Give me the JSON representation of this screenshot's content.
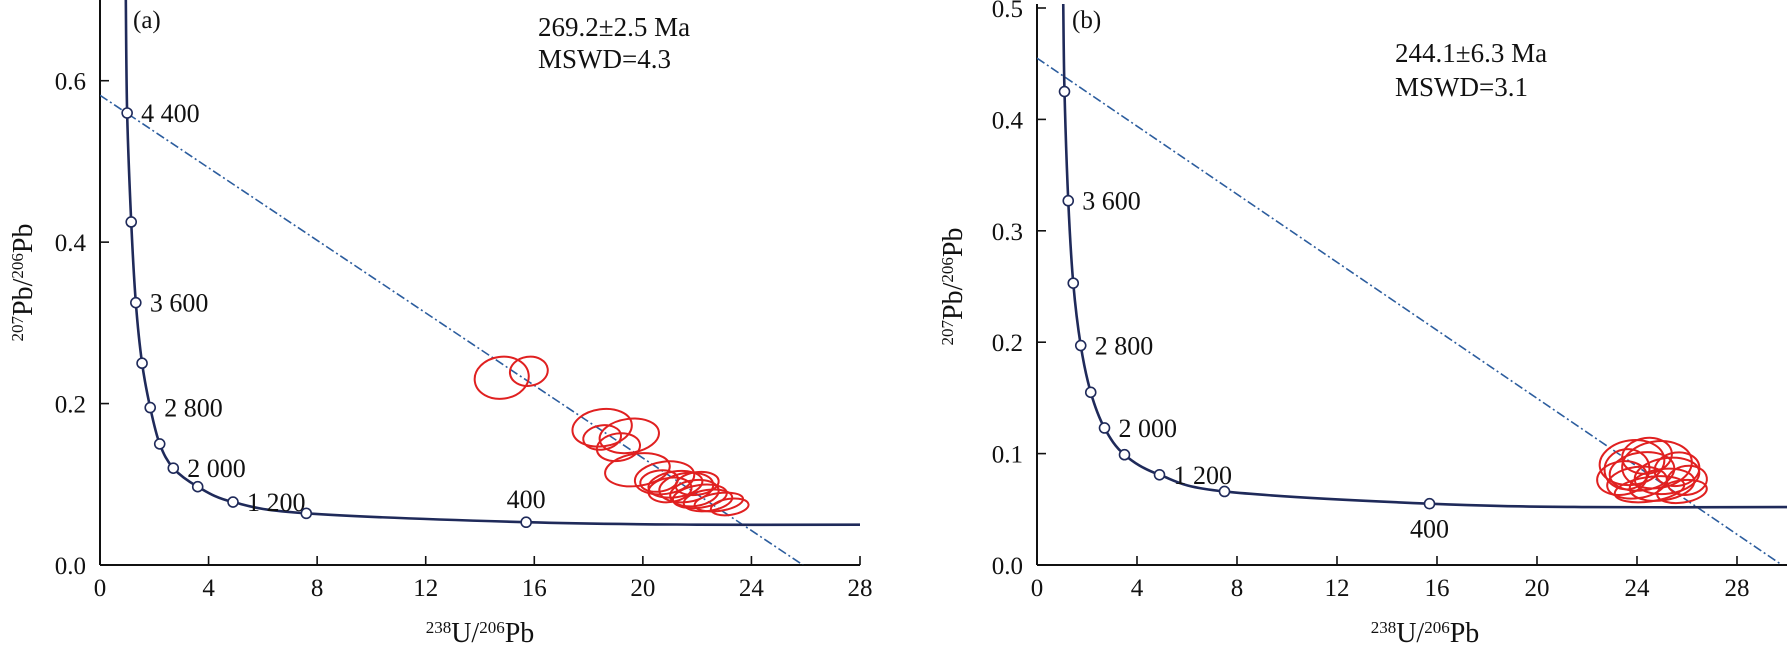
{
  "colors": {
    "concordia": "#1f2a5a",
    "discordia": "#2c5d9e",
    "ellipse": "#e02020",
    "axis": "#111111"
  },
  "chart_data": [
    {
      "type": "scatter",
      "panel_label": "(a)",
      "annotation": {
        "age": "269.2±2.5 Ma",
        "mswd": "MSWD=4.3"
      },
      "xlabel": {
        "sup1": "238",
        "t1": "U/",
        "sup2": "206",
        "t2": "Pb"
      },
      "ylabel": {
        "sup1": "207",
        "t1": "Pb/",
        "sup2": "206",
        "t2": "Pb"
      },
      "xlim": [
        0,
        28
      ],
      "ylim": [
        0,
        0.7
      ],
      "xticks": [
        0,
        4,
        8,
        12,
        16,
        20,
        24,
        28
      ],
      "xtick_labels": [
        "0",
        "4",
        "8",
        "12",
        "16",
        "20",
        "24",
        "28"
      ],
      "yticks": [
        0,
        0.2,
        0.4,
        0.6
      ],
      "ytick_labels": [
        "0.0",
        "0.2",
        "0.4",
        "0.6"
      ],
      "concordia_nodes": [
        {
          "x": 1.0,
          "y": 0.56,
          "label": "4 400"
        },
        {
          "x": 1.15,
          "y": 0.425,
          "label": ""
        },
        {
          "x": 1.32,
          "y": 0.325,
          "label": "3 600"
        },
        {
          "x": 1.55,
          "y": 0.25,
          "label": ""
        },
        {
          "x": 1.85,
          "y": 0.195,
          "label": "2 800"
        },
        {
          "x": 2.2,
          "y": 0.15,
          "label": ""
        },
        {
          "x": 2.7,
          "y": 0.12,
          "label": "2 000"
        },
        {
          "x": 3.6,
          "y": 0.097,
          "label": ""
        },
        {
          "x": 4.9,
          "y": 0.078,
          "label": "1 200"
        },
        {
          "x": 7.6,
          "y": 0.064,
          "label": ""
        },
        {
          "x": 15.7,
          "y": 0.053,
          "label": "400"
        }
      ],
      "discordia": {
        "intercept_y": 0.582,
        "lower_x": 25.9
      },
      "ellipses": [
        {
          "cx": 14.8,
          "cy": 0.232,
          "rx": 1.0,
          "ry": 0.026
        },
        {
          "cx": 15.8,
          "cy": 0.24,
          "rx": 0.7,
          "ry": 0.018
        },
        {
          "cx": 18.5,
          "cy": 0.17,
          "rx": 1.1,
          "ry": 0.023
        },
        {
          "cx": 19.5,
          "cy": 0.16,
          "rx": 1.1,
          "ry": 0.021
        },
        {
          "cx": 18.5,
          "cy": 0.158,
          "rx": 0.7,
          "ry": 0.015
        },
        {
          "cx": 19.1,
          "cy": 0.146,
          "rx": 0.8,
          "ry": 0.017
        },
        {
          "cx": 19.8,
          "cy": 0.118,
          "rx": 1.2,
          "ry": 0.02
        },
        {
          "cx": 20.8,
          "cy": 0.108,
          "rx": 1.1,
          "ry": 0.02
        },
        {
          "cx": 21.2,
          "cy": 0.1,
          "rx": 1.0,
          "ry": 0.016
        },
        {
          "cx": 21.6,
          "cy": 0.096,
          "rx": 1.0,
          "ry": 0.018
        },
        {
          "cx": 21.9,
          "cy": 0.089,
          "rx": 0.9,
          "ry": 0.016
        },
        {
          "cx": 22.1,
          "cy": 0.085,
          "rx": 1.0,
          "ry": 0.014
        },
        {
          "cx": 22.4,
          "cy": 0.08,
          "rx": 0.9,
          "ry": 0.013
        },
        {
          "cx": 22.8,
          "cy": 0.078,
          "rx": 0.9,
          "ry": 0.011
        },
        {
          "cx": 23.2,
          "cy": 0.072,
          "rx": 0.7,
          "ry": 0.01
        },
        {
          "cx": 21.0,
          "cy": 0.093,
          "rx": 0.8,
          "ry": 0.015
        },
        {
          "cx": 22.0,
          "cy": 0.101,
          "rx": 0.8,
          "ry": 0.014
        },
        {
          "cx": 20.6,
          "cy": 0.104,
          "rx": 0.7,
          "ry": 0.013
        }
      ]
    },
    {
      "type": "scatter",
      "panel_label": "(b)",
      "annotation": {
        "age": "244.1±6.3 Ma",
        "mswd": "MSWD=3.1"
      },
      "xlabel": {
        "sup1": "238",
        "t1": "U/",
        "sup2": "206",
        "t2": "Pb"
      },
      "ylabel": {
        "sup1": "207",
        "t1": "Pb/",
        "sup2": "206",
        "t2": "Pb"
      },
      "xlim": [
        0,
        30
      ],
      "ylim": [
        0,
        0.5
      ],
      "xticks": [
        0,
        4,
        8,
        12,
        16,
        20,
        24,
        28
      ],
      "xtick_labels": [
        "0",
        "4",
        "8",
        "12",
        "16",
        "20",
        "24",
        "28"
      ],
      "yticks": [
        0,
        0.1,
        0.2,
        0.3,
        0.4,
        0.5
      ],
      "ytick_labels": [
        "0.0",
        "0.1",
        "0.2",
        "0.3",
        "0.4",
        "0.5"
      ],
      "concordia_nodes": [
        {
          "x": 1.1,
          "y": 0.425,
          "label": ""
        },
        {
          "x": 1.25,
          "y": 0.327,
          "label": "3 600"
        },
        {
          "x": 1.45,
          "y": 0.253,
          "label": ""
        },
        {
          "x": 1.75,
          "y": 0.197,
          "label": "2 800"
        },
        {
          "x": 2.15,
          "y": 0.155,
          "label": ""
        },
        {
          "x": 2.7,
          "y": 0.123,
          "label": "2 000"
        },
        {
          "x": 3.5,
          "y": 0.099,
          "label": ""
        },
        {
          "x": 4.9,
          "y": 0.081,
          "label": "1 200"
        },
        {
          "x": 7.5,
          "y": 0.066,
          "label": ""
        },
        {
          "x": 15.7,
          "y": 0.055,
          "label": "400"
        }
      ],
      "discordia": {
        "intercept_y": 0.455,
        "lower_x": 29.8
      },
      "ellipses": [
        {
          "cx": 23.8,
          "cy": 0.092,
          "rx": 1.3,
          "ry": 0.02
        },
        {
          "cx": 24.8,
          "cy": 0.09,
          "rx": 1.4,
          "ry": 0.021
        },
        {
          "cx": 24.2,
          "cy": 0.084,
          "rx": 1.3,
          "ry": 0.017
        },
        {
          "cx": 25.2,
          "cy": 0.08,
          "rx": 1.3,
          "ry": 0.016
        },
        {
          "cx": 23.4,
          "cy": 0.078,
          "rx": 1.0,
          "ry": 0.015
        },
        {
          "cx": 24.0,
          "cy": 0.074,
          "rx": 1.2,
          "ry": 0.014
        },
        {
          "cx": 25.0,
          "cy": 0.072,
          "rx": 1.3,
          "ry": 0.014
        },
        {
          "cx": 24.5,
          "cy": 0.068,
          "rx": 1.4,
          "ry": 0.011
        },
        {
          "cx": 25.8,
          "cy": 0.066,
          "rx": 1.0,
          "ry": 0.01
        },
        {
          "cx": 23.6,
          "cy": 0.086,
          "rx": 0.9,
          "ry": 0.018
        },
        {
          "cx": 24.4,
          "cy": 0.098,
          "rx": 1.0,
          "ry": 0.016
        },
        {
          "cx": 25.6,
          "cy": 0.086,
          "rx": 0.9,
          "ry": 0.015
        },
        {
          "cx": 26.0,
          "cy": 0.076,
          "rx": 0.8,
          "ry": 0.013
        }
      ]
    }
  ]
}
